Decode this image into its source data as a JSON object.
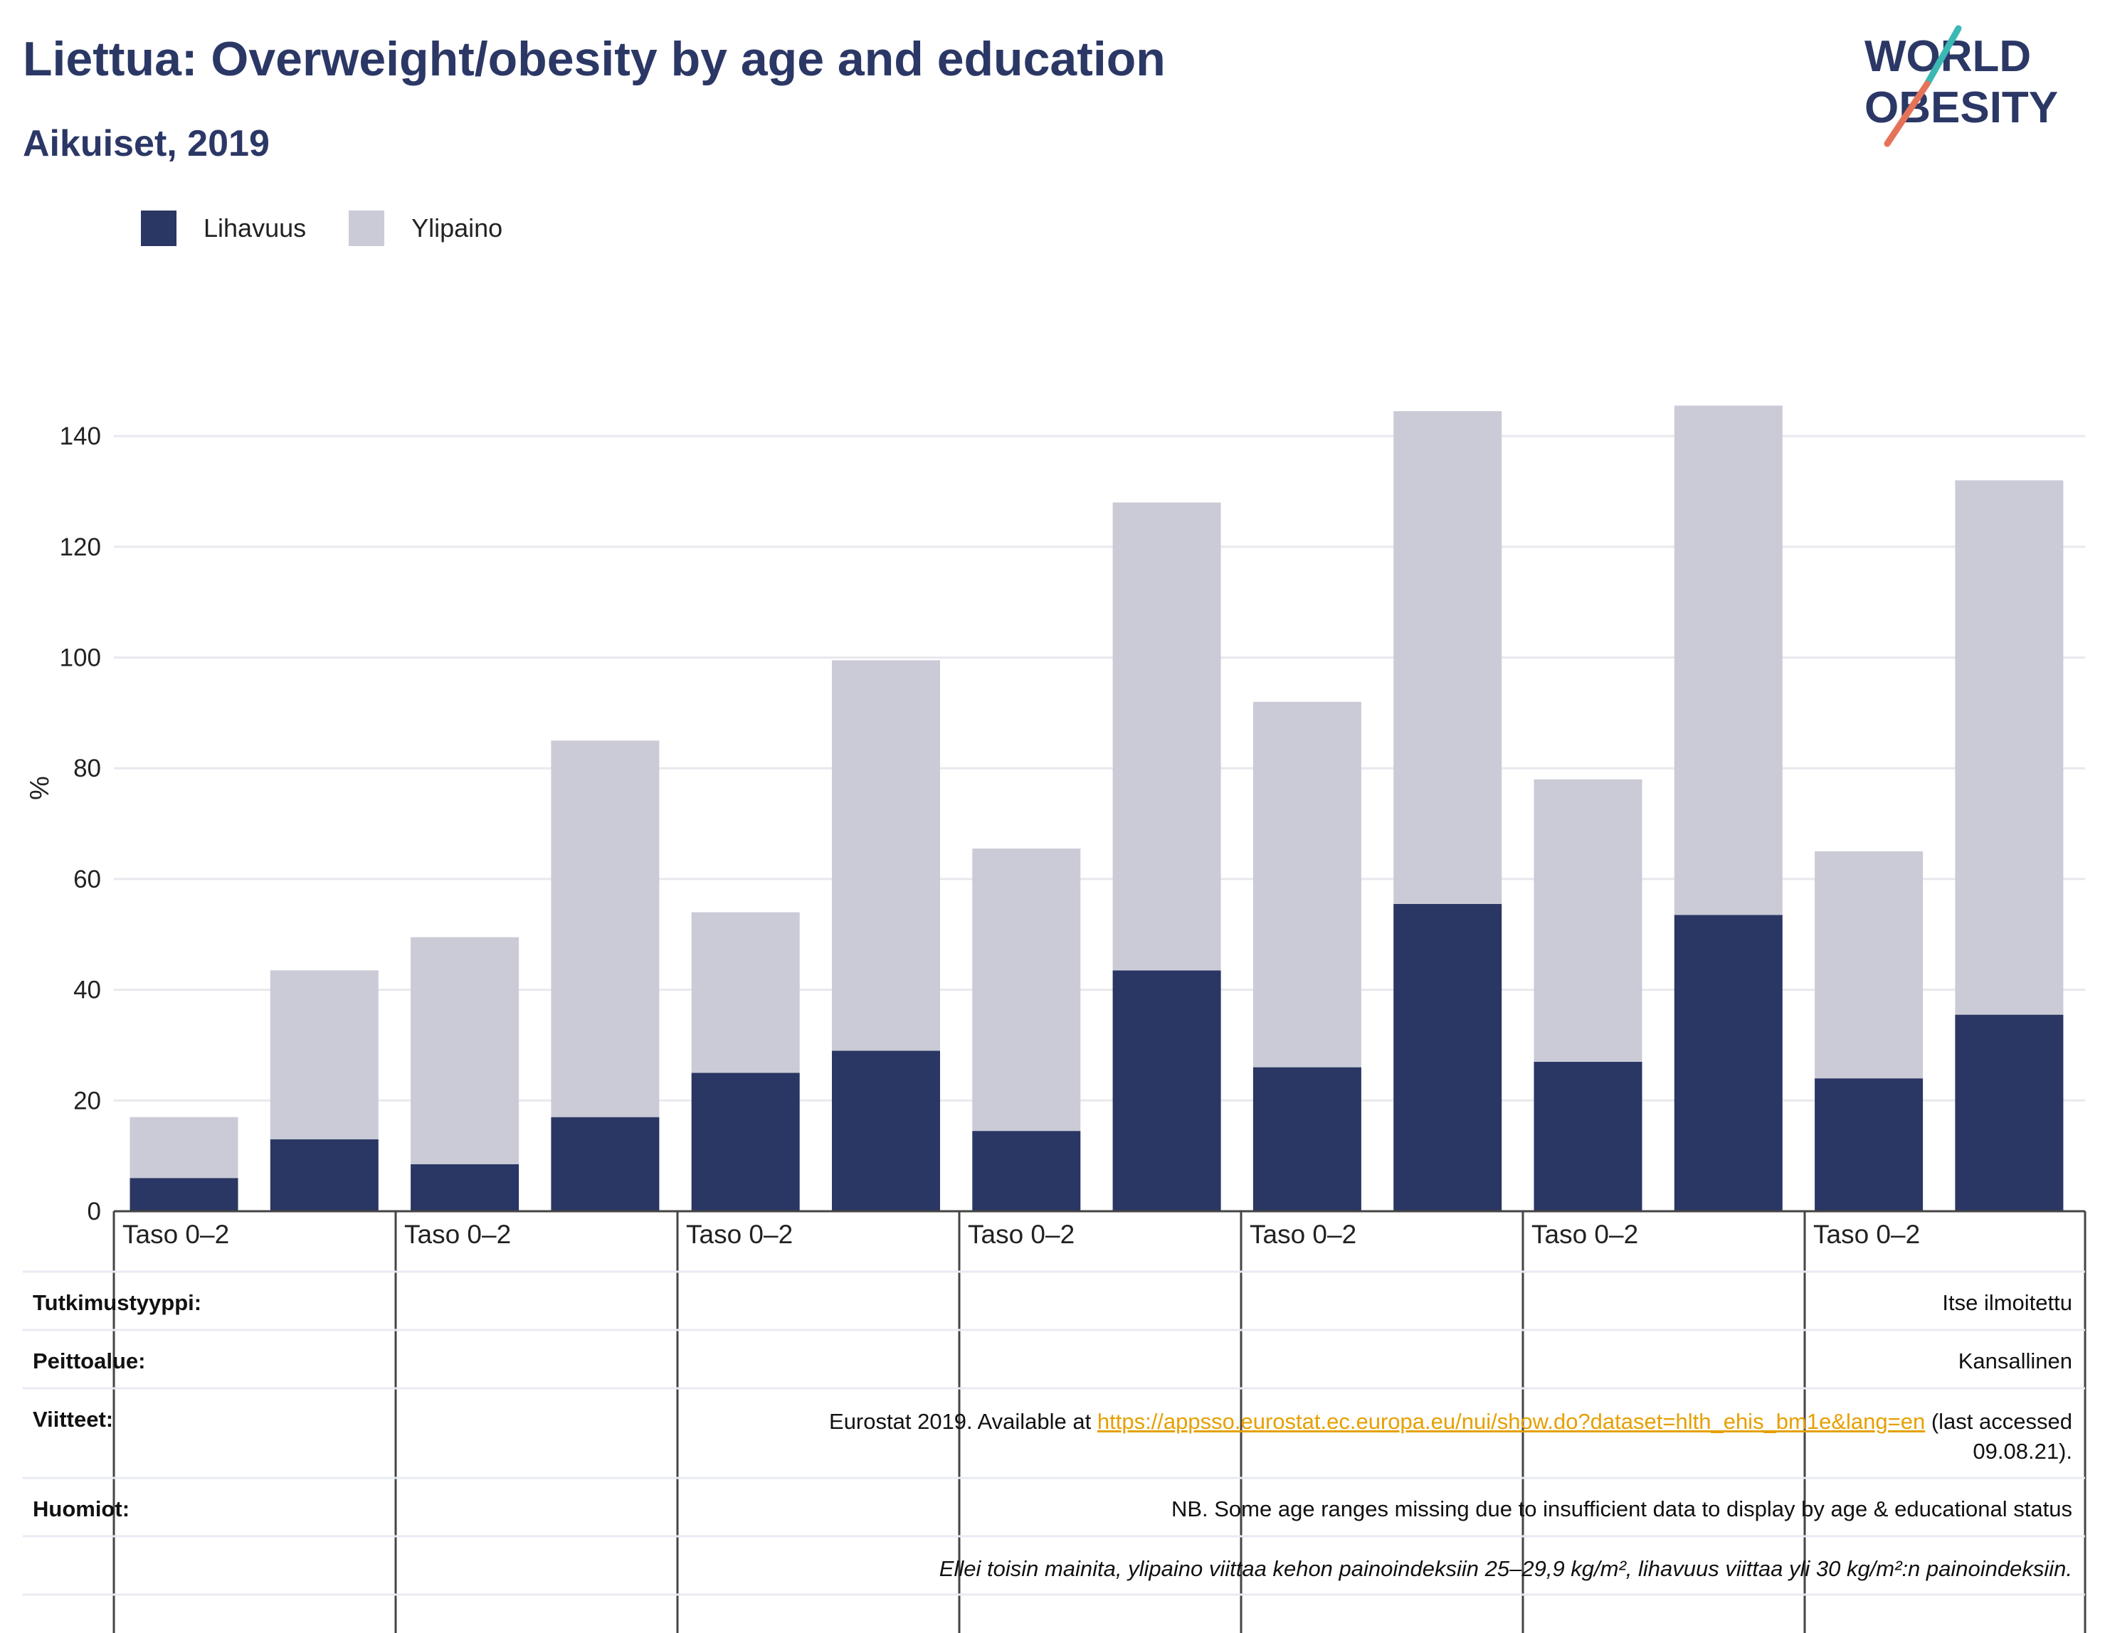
{
  "header": {
    "title": "Liettua: Overweight/obesity by age and education",
    "subtitle": "Aikuiset, 2019"
  },
  "logo": {
    "line1": "WORLD",
    "line2": "OBESITY",
    "colors": {
      "text": "#2b3765",
      "slash_top": "#3bb8b3",
      "slash_bottom": "#e5735a"
    }
  },
  "legend": [
    {
      "label": "Lihavuus",
      "color": "#2a3663"
    },
    {
      "label": "Ylipaino",
      "color": "#cacbd6"
    }
  ],
  "chart_data": {
    "type": "bar",
    "stacked": true,
    "ylabel": "%",
    "ylim": [
      0,
      145
    ],
    "yticks": [
      0,
      20,
      40,
      60,
      80,
      100,
      120,
      140
    ],
    "grid": true,
    "legend_position": "top-left",
    "group_labels": [
      "Taso 0–2",
      "Taso 0–2",
      "Taso 0–2",
      "Taso 0–2",
      "Taso 0–2",
      "Taso 0–2",
      "Taso 0–2"
    ],
    "series": [
      {
        "name": "Lihavuus",
        "color": "#2a3663",
        "values": [
          6,
          13,
          8.5,
          17,
          25,
          29,
          14.5,
          43.5,
          26,
          55.5,
          27,
          53.5,
          24,
          35.5
        ]
      },
      {
        "name": "Ylipaino",
        "color": "#cacbd6",
        "values": [
          11,
          30.5,
          41,
          68,
          29,
          70.5,
          51,
          84.5,
          66,
          89,
          51,
          92,
          41,
          96.5
        ]
      }
    ]
  },
  "info_table": {
    "rows": [
      {
        "label": "Tutkimustyyppi:",
        "value": "Itse ilmoitettu"
      },
      {
        "label": "Peittoalue:",
        "value": "Kansallinen"
      },
      {
        "label": "Viitteet:",
        "value_prefix": "Eurostat 2019. Available at ",
        "link": "https://appsso.eurostat.ec.europa.eu/nui/show.do?dataset=hlth_ehis_bm1e&lang=en",
        "value_suffix": " (last accessed",
        "value_line2": "09.08.21)."
      },
      {
        "label": "Huomiot:",
        "value": "NB. Some age ranges missing due to insufficient data to display by age & educational status"
      },
      {
        "label": "",
        "value": "Ellei toisin mainita, ylipaino viittaa kehon painoindeksiin 25–29,9 kg/m², lihavuus viittaa yli 30 kg/m²:n painoindeksiin."
      }
    ]
  }
}
